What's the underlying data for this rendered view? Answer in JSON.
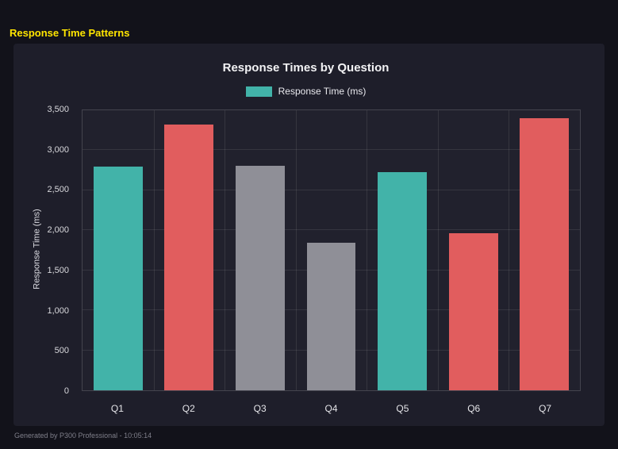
{
  "page_title": "Response Time Patterns",
  "footer": "Generated by P300 Professional - 10:05:14",
  "colors": {
    "accent_yellow": "#ffe500",
    "teal": "#42b3a9",
    "red": "#e15d5e",
    "gray": "#8f8f97",
    "panel_background": "#1e1e2a",
    "page_background": "#12121a"
  },
  "chart_data": {
    "type": "bar",
    "title": "Response Times by Question",
    "legend": [
      {
        "label": "Response Time (ms)",
        "color": "#42b3a9"
      }
    ],
    "legend_position": "top",
    "categories": [
      "Q1",
      "Q2",
      "Q3",
      "Q4",
      "Q5",
      "Q6",
      "Q7"
    ],
    "values": [
      2800,
      3320,
      2810,
      1840,
      2730,
      1960,
      3400
    ],
    "bar_colors": [
      "#42b3a9",
      "#e15d5e",
      "#8f8f97",
      "#8f8f97",
      "#42b3a9",
      "#e15d5e",
      "#e15d5e"
    ],
    "xlabel": "",
    "ylabel": "Response Time (ms)",
    "ylim": [
      0,
      3500
    ],
    "yticks": [
      0,
      500,
      1000,
      1500,
      2000,
      2500,
      3000,
      3500
    ],
    "ytick_labels": [
      "0",
      "500",
      "1,000",
      "1,500",
      "2,000",
      "2,500",
      "3,000",
      "3,500"
    ],
    "grid": true
  }
}
